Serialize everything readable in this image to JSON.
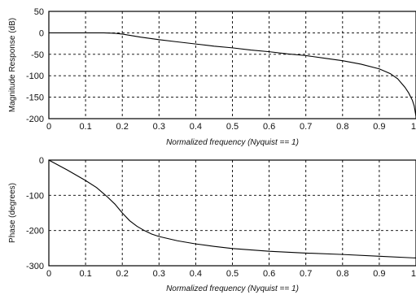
{
  "chart_data": [
    {
      "type": "line",
      "title": "",
      "xlabel": "Normalized frequency (Nyquist == 1)",
      "ylabel": "Magnitude Response (dB)",
      "xlim": [
        0,
        1
      ],
      "ylim": [
        -200,
        50
      ],
      "xticks": [
        0,
        0.1,
        0.2,
        0.3,
        0.4,
        0.5,
        0.6,
        0.7,
        0.8,
        0.9,
        1
      ],
      "xtick_labels": [
        "0",
        "0.1",
        "0.2",
        "0.3",
        "0.4",
        "0.5",
        "0.6",
        "0.7",
        "0.8",
        "0.9",
        "1"
      ],
      "yticks": [
        50,
        0,
        -50,
        -100,
        -150,
        -200
      ],
      "ytick_labels": [
        "50",
        "0",
        "-50",
        "-100",
        "-150",
        "-200"
      ],
      "grid": true,
      "series": [
        {
          "x": [
            0,
            0.05,
            0.1,
            0.15,
            0.18,
            0.2,
            0.25,
            0.3,
            0.35,
            0.4,
            0.45,
            0.5,
            0.55,
            0.6,
            0.65,
            0.7,
            0.75,
            0.8,
            0.85,
            0.9,
            0.93,
            0.95,
            0.97,
            0.98,
            0.99,
            0.995,
            1.0
          ],
          "y": [
            0,
            0,
            0,
            0,
            -1,
            -3,
            -10,
            -16,
            -21,
            -26,
            -31,
            -35,
            -40,
            -44,
            -49,
            -53,
            -59,
            -65,
            -73,
            -84,
            -95,
            -107,
            -127,
            -140,
            -157,
            -170,
            -195
          ]
        }
      ]
    },
    {
      "type": "line",
      "title": "",
      "xlabel": "Normalized frequency (Nyquist == 1)",
      "ylabel": "Phase (degrees)",
      "xlim": [
        0,
        1
      ],
      "ylim": [
        -300,
        0
      ],
      "xticks": [
        0,
        0.1,
        0.2,
        0.3,
        0.4,
        0.5,
        0.6,
        0.7,
        0.8,
        0.9,
        1
      ],
      "xtick_labels": [
        "0",
        "0.1",
        "0.2",
        "0.3",
        "0.4",
        "0.5",
        "0.6",
        "0.7",
        "0.8",
        "0.9",
        "1"
      ],
      "yticks": [
        0,
        -100,
        -200,
        -300
      ],
      "ytick_labels": [
        "0",
        "-100",
        "-200",
        "-300"
      ],
      "grid": true,
      "series": [
        {
          "x": [
            0,
            0.05,
            0.1,
            0.13,
            0.16,
            0.18,
            0.2,
            0.22,
            0.24,
            0.26,
            0.28,
            0.3,
            0.35,
            0.4,
            0.45,
            0.5,
            0.6,
            0.7,
            0.8,
            0.9,
            1.0
          ],
          "y": [
            0,
            -28,
            -58,
            -78,
            -105,
            -125,
            -150,
            -172,
            -188,
            -200,
            -210,
            -217,
            -229,
            -238,
            -245,
            -251,
            -259,
            -264,
            -268,
            -273,
            -278
          ]
        }
      ]
    }
  ]
}
